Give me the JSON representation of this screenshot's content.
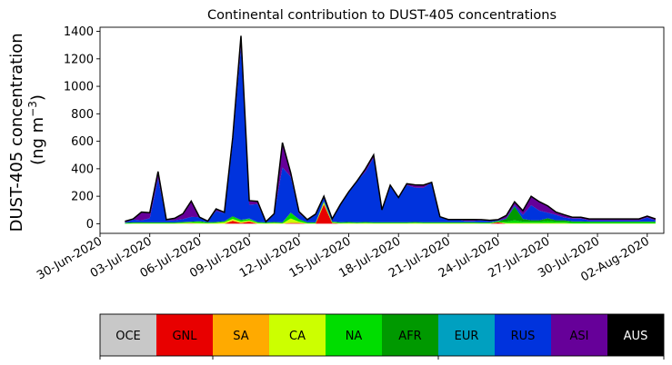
{
  "chart_data": {
    "type": "area",
    "title": "Continental contribution to DUST-405 concentrations",
    "ylabel_line1": "DUST-405 concentration",
    "ylabel_line2_prefix": "(ng m",
    "ylabel_line2_sup": "−3",
    "ylabel_line2_suffix": ")",
    "xlabel": "",
    "stacked": true,
    "ylim": [
      -70,
      1430
    ],
    "xlim": [
      "2020-06-30",
      "2020-08-03"
    ],
    "yticks": [
      0,
      200,
      400,
      600,
      800,
      1000,
      1200,
      1400
    ],
    "xticks": [
      "30-Jun-2020",
      "03-Jul-2020",
      "06-Jul-2020",
      "09-Jul-2020",
      "12-Jul-2020",
      "15-Jul-2020",
      "18-Jul-2020",
      "21-Jul-2020",
      "24-Jul-2020",
      "27-Jul-2020",
      "30-Jul-2020",
      "02-Aug-2020"
    ],
    "x": [
      "2020-07-01 12:00",
      "2020-07-02 00:00",
      "2020-07-02 12:00",
      "2020-07-03 00:00",
      "2020-07-03 12:00",
      "2020-07-04 00:00",
      "2020-07-04 12:00",
      "2020-07-05 00:00",
      "2020-07-05 12:00",
      "2020-07-06 00:00",
      "2020-07-06 12:00",
      "2020-07-07 00:00",
      "2020-07-07 12:00",
      "2020-07-08 00:00",
      "2020-07-08 12:00",
      "2020-07-09 00:00",
      "2020-07-09 12:00",
      "2020-07-10 00:00",
      "2020-07-10 12:00",
      "2020-07-11 00:00",
      "2020-07-11 12:00",
      "2020-07-12 00:00",
      "2020-07-12 12:00",
      "2020-07-13 00:00",
      "2020-07-13 12:00",
      "2020-07-14 00:00",
      "2020-07-14 12:00",
      "2020-07-15 00:00",
      "2020-07-15 12:00",
      "2020-07-16 00:00",
      "2020-07-16 12:00",
      "2020-07-17 00:00",
      "2020-07-17 12:00",
      "2020-07-18 00:00",
      "2020-07-18 12:00",
      "2020-07-19 00:00",
      "2020-07-19 12:00",
      "2020-07-20 00:00",
      "2020-07-20 12:00",
      "2020-07-21 00:00",
      "2020-07-21 12:00",
      "2020-07-22 00:00",
      "2020-07-22 12:00",
      "2020-07-23 00:00",
      "2020-07-23 12:00",
      "2020-07-24 00:00",
      "2020-07-24 12:00",
      "2020-07-25 00:00",
      "2020-07-25 12:00",
      "2020-07-26 00:00",
      "2020-07-26 12:00",
      "2020-07-27 00:00",
      "2020-07-27 12:00",
      "2020-07-28 00:00",
      "2020-07-28 12:00",
      "2020-07-29 00:00",
      "2020-07-29 12:00",
      "2020-07-30 00:00",
      "2020-07-30 12:00",
      "2020-07-31 00:00",
      "2020-07-31 12:00",
      "2020-08-01 00:00",
      "2020-08-01 12:00",
      "2020-08-02 00:00",
      "2020-08-02 12:00"
    ],
    "series": [
      {
        "name": "OCE",
        "color": "#c8c8c8",
        "values": [
          0,
          0,
          0,
          0,
          0,
          0,
          0,
          0,
          0,
          0,
          0,
          0,
          0,
          0,
          0,
          0,
          0,
          0,
          0,
          0,
          0,
          0,
          0,
          0,
          0,
          0,
          0,
          0,
          0,
          0,
          0,
          0,
          0,
          0,
          0,
          0,
          0,
          0,
          0,
          0,
          0,
          0,
          0,
          0,
          0,
          0,
          0,
          0,
          0,
          0,
          0,
          0,
          0,
          0,
          0,
          0,
          0,
          0,
          0,
          0,
          0,
          0,
          0,
          0,
          0
        ]
      },
      {
        "name": "GNL",
        "color": "#e80000",
        "values": [
          0,
          0,
          0,
          0,
          0,
          0,
          0,
          0,
          2,
          0,
          0,
          0,
          0,
          20,
          5,
          15,
          0,
          0,
          0,
          0,
          5,
          5,
          0,
          0,
          140,
          5,
          0,
          0,
          0,
          0,
          0,
          0,
          0,
          0,
          0,
          0,
          0,
          0,
          0,
          0,
          0,
          0,
          0,
          0,
          0,
          10,
          0,
          0,
          0,
          0,
          0,
          0,
          0,
          0,
          0,
          0,
          0,
          0,
          0,
          0,
          0,
          0,
          0,
          0,
          0
        ]
      },
      {
        "name": "SA",
        "color": "#ffaa00",
        "values": [
          0,
          0,
          0,
          0,
          0,
          0,
          0,
          0,
          0,
          0,
          0,
          0,
          0,
          5,
          0,
          3,
          0,
          0,
          0,
          0,
          3,
          0,
          0,
          0,
          5,
          0,
          0,
          0,
          0,
          0,
          0,
          0,
          0,
          0,
          0,
          0,
          0,
          0,
          0,
          0,
          0,
          0,
          0,
          0,
          0,
          0,
          0,
          0,
          0,
          0,
          0,
          0,
          0,
          0,
          0,
          0,
          0,
          0,
          0,
          0,
          0,
          0,
          0,
          0,
          0
        ]
      },
      {
        "name": "CA",
        "color": "#ccff00",
        "values": [
          0,
          2,
          2,
          2,
          2,
          2,
          2,
          5,
          5,
          5,
          3,
          5,
          10,
          10,
          10,
          5,
          5,
          2,
          5,
          2,
          30,
          10,
          2,
          2,
          10,
          3,
          3,
          5,
          3,
          5,
          3,
          3,
          3,
          3,
          3,
          5,
          3,
          3,
          3,
          3,
          3,
          3,
          3,
          2,
          2,
          2,
          5,
          5,
          5,
          5,
          5,
          5,
          5,
          5,
          2,
          2,
          2,
          2,
          2,
          2,
          2,
          2,
          2,
          2,
          2
        ]
      },
      {
        "name": "NA",
        "color": "#00dd00",
        "values": [
          5,
          5,
          5,
          5,
          5,
          5,
          5,
          5,
          5,
          10,
          5,
          5,
          5,
          15,
          10,
          10,
          5,
          5,
          5,
          5,
          40,
          15,
          5,
          5,
          5,
          5,
          5,
          5,
          5,
          5,
          5,
          5,
          5,
          5,
          5,
          5,
          5,
          5,
          5,
          5,
          5,
          5,
          5,
          5,
          5,
          5,
          10,
          20,
          10,
          10,
          10,
          15,
          10,
          10,
          10,
          10,
          10,
          10,
          10,
          10,
          10,
          10,
          10,
          10,
          10
        ]
      },
      {
        "name": "AFR",
        "color": "#009900",
        "values": [
          3,
          3,
          3,
          3,
          3,
          3,
          3,
          3,
          3,
          3,
          3,
          3,
          3,
          5,
          3,
          3,
          3,
          3,
          3,
          3,
          3,
          3,
          3,
          3,
          3,
          3,
          3,
          3,
          3,
          3,
          3,
          3,
          3,
          3,
          3,
          3,
          3,
          3,
          3,
          3,
          3,
          3,
          3,
          3,
          3,
          3,
          20,
          100,
          20,
          10,
          10,
          20,
          10,
          10,
          5,
          5,
          3,
          3,
          3,
          3,
          3,
          3,
          3,
          3,
          3
        ]
      },
      {
        "name": "EUR",
        "color": "#00a0c0",
        "values": [
          0,
          0,
          0,
          0,
          0,
          0,
          0,
          0,
          0,
          0,
          0,
          0,
          0,
          0,
          0,
          2,
          0,
          0,
          0,
          0,
          0,
          0,
          0,
          0,
          2,
          0,
          0,
          0,
          0,
          0,
          0,
          0,
          0,
          0,
          0,
          0,
          0,
          0,
          0,
          0,
          0,
          0,
          0,
          0,
          0,
          0,
          0,
          0,
          0,
          0,
          0,
          0,
          0,
          0,
          0,
          0,
          0,
          0,
          0,
          0,
          0,
          0,
          0,
          0,
          0
        ]
      },
      {
        "name": "RUS",
        "color": "#0033dd",
        "values": [
          2,
          20,
          15,
          30,
          320,
          15,
          15,
          20,
          35,
          30,
          8,
          80,
          60,
          530,
          1260,
          100,
          130,
          5,
          60,
          400,
          260,
          40,
          20,
          60,
          30,
          20,
          130,
          220,
          300,
          365,
          470,
          90,
          270,
          180,
          270,
          250,
          250,
          290,
          40,
          20,
          20,
          10,
          10,
          15,
          10,
          5,
          5,
          10,
          30,
          110,
          70,
          40,
          40,
          20,
          20,
          20,
          10,
          10,
          10,
          10,
          10,
          10,
          10,
          30,
          10
        ]
      },
      {
        "name": "ASI",
        "color": "#660099",
        "values": [
          8,
          5,
          60,
          40,
          50,
          5,
          15,
          40,
          115,
          0,
          0,
          15,
          5,
          40,
          80,
          30,
          20,
          0,
          0,
          180,
          30,
          15,
          0,
          0,
          5,
          0,
          0,
          0,
          0,
          20,
          20,
          0,
          0,
          0,
          10,
          20,
          20,
          0,
          0,
          0,
          0,
          10,
          10,
          5,
          5,
          5,
          20,
          25,
          30,
          65,
          65,
          50,
          20,
          20,
          10,
          10,
          10,
          10,
          10,
          10,
          10,
          10,
          10,
          10,
          10
        ]
      },
      {
        "name": "AUS",
        "color": "#000000",
        "values": [
          0,
          0,
          0,
          0,
          0,
          0,
          0,
          0,
          0,
          0,
          0,
          0,
          0,
          0,
          0,
          0,
          0,
          0,
          0,
          0,
          0,
          0,
          0,
          0,
          0,
          0,
          0,
          0,
          0,
          0,
          0,
          0,
          0,
          0,
          0,
          0,
          0,
          0,
          0,
          0,
          0,
          0,
          0,
          0,
          0,
          0,
          0,
          0,
          0,
          0,
          0,
          0,
          0,
          0,
          0,
          0,
          0,
          0,
          0,
          0,
          0,
          0,
          0,
          0,
          0
        ]
      }
    ],
    "legend": [
      {
        "label": "OCE",
        "color": "#c8c8c8",
        "text_color": "#000000"
      },
      {
        "label": "GNL",
        "color": "#e80000",
        "text_color": "#000000"
      },
      {
        "label": "SA",
        "color": "#ffaa00",
        "text_color": "#000000"
      },
      {
        "label": "CA",
        "color": "#ccff00",
        "text_color": "#000000"
      },
      {
        "label": "NA",
        "color": "#00dd00",
        "text_color": "#000000"
      },
      {
        "label": "AFR",
        "color": "#009900",
        "text_color": "#000000"
      },
      {
        "label": "EUR",
        "color": "#00a0c0",
        "text_color": "#000000"
      },
      {
        "label": "RUS",
        "color": "#0033dd",
        "text_color": "#000000"
      },
      {
        "label": "ASI",
        "color": "#660099",
        "text_color": "#000000"
      },
      {
        "label": "AUS",
        "color": "#000000",
        "text_color": "#ffffff"
      }
    ],
    "legend_placement": "bottom"
  }
}
